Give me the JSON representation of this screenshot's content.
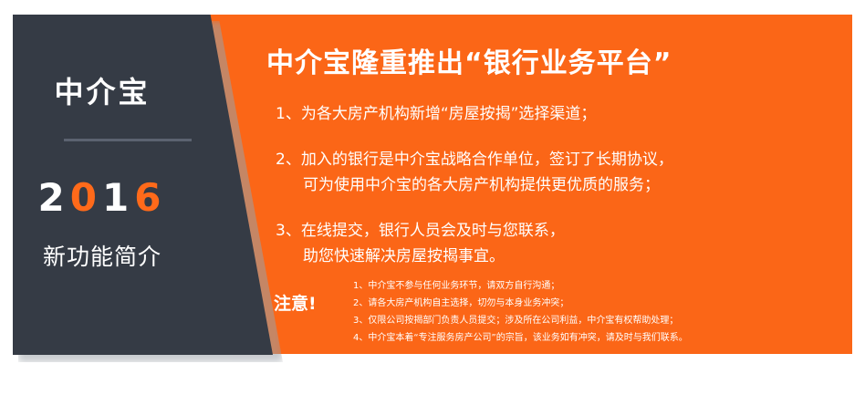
{
  "sidebar": {
    "logo": "中介宝",
    "year_pre": "2",
    "year_hl1": "0",
    "year_mid": "1",
    "year_hl2": "6",
    "subtitle": "新功能简介"
  },
  "main": {
    "title": "中介宝隆重推出“银行业务平台”",
    "items": [
      {
        "line1": "1、为各大房产机构新增“房屋按揭”选择渠道；"
      },
      {
        "line1": "2、加入的银行是中介宝战略合作单位，签订了长期协议，",
        "line2": "可为使用中介宝的各大房产机构提供更优质的服务；"
      },
      {
        "line1": "3、在线提交，银行人员会及时与您联系，",
        "line2": "助您快速解决房屋按揭事宜。"
      }
    ]
  },
  "notes": {
    "label": "注意!",
    "items": [
      "1、中介宝不参与任何业务环节，请双方自行沟通；",
      "2、请各大房产机构自主选择，切勿与本身业务冲突；",
      "3、仅限公司按揭部门负责人员提交；涉及所在公司利益，中介宝有权帮助处理；",
      "4、中介宝本着“专注服务房产公司”的宗旨，该业务如有冲突，请及时与我们联系。"
    ]
  }
}
